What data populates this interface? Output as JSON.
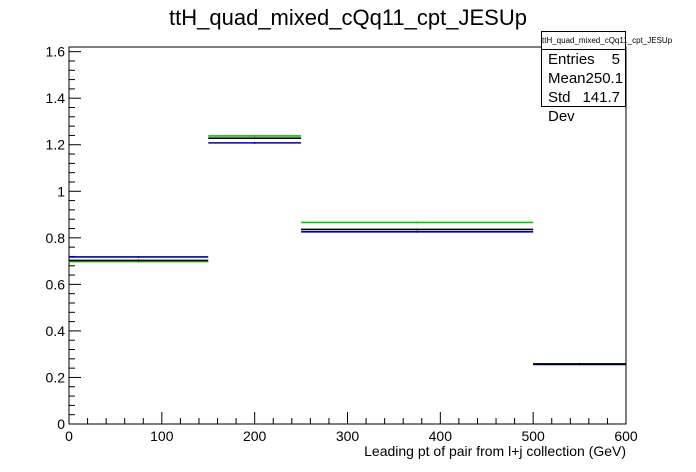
{
  "chart_data": {
    "type": "step",
    "title": "ttH_quad_mixed_cQq11_cpt_JESUp",
    "xlabel": "Leading pt of pair from l+j collection (GeV)",
    "ylabel": "",
    "xlim": [
      0,
      600
    ],
    "ylim": [
      0,
      1.62
    ],
    "x_ticks": [
      "0",
      "100",
      "200",
      "300",
      "400",
      "500",
      "600"
    ],
    "y_ticks": [
      "0",
      "0.2",
      "0.4",
      "0.6",
      "0.8",
      "1",
      "1.2",
      "1.4",
      "1.6"
    ],
    "bin_edges": [
      0,
      150,
      250,
      500,
      600
    ],
    "series": [
      {
        "color": "#000000",
        "values": [
          0.703,
          1.228,
          0.836,
          0.258
        ]
      },
      {
        "color": "#0000aa",
        "values": [
          0.718,
          1.208,
          0.826,
          0.256
        ]
      },
      {
        "color": "#00cc00",
        "values": [
          0.698,
          1.238,
          0.866,
          0.258
        ]
      }
    ],
    "grid": false
  },
  "stats": {
    "title": "ttH_quad_mixed_cQq11_cpt_JESUp",
    "rows": [
      {
        "label": "Entries",
        "value": "5"
      },
      {
        "label": "Mean",
        "value": "250.1"
      },
      {
        "label": "Std Dev",
        "value": "141.7"
      }
    ]
  }
}
